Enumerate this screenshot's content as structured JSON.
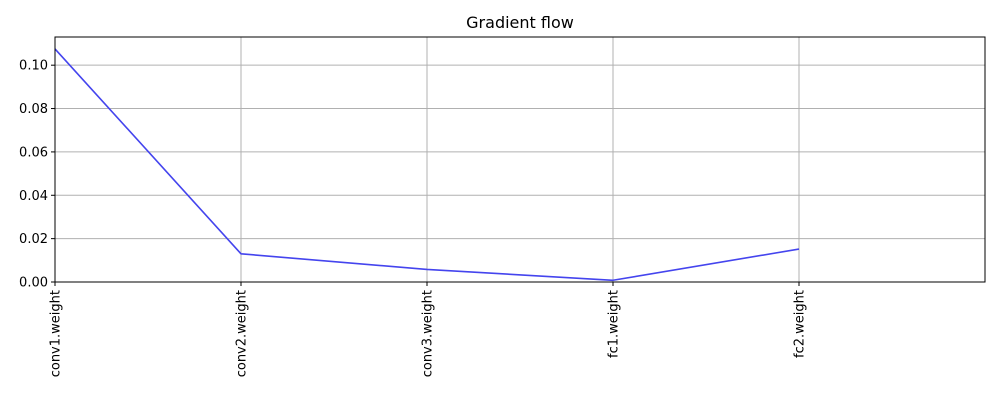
{
  "chart_data": {
    "type": "line",
    "title": "Gradient flow",
    "xlabel": "",
    "ylabel": "",
    "categories": [
      "conv1.weight",
      "conv2.weight",
      "conv3.weight",
      "fc1.weight",
      "fc2.weight"
    ],
    "series": [
      {
        "values": [
          0.1075,
          0.013,
          0.0058,
          0.0008,
          0.0152
        ],
        "color": "#4444ee"
      }
    ],
    "xlim": [
      0,
      5
    ],
    "ylim": [
      0,
      0.113
    ],
    "yticks": [
      "0.00",
      "0.02",
      "0.04",
      "0.06",
      "0.08",
      "0.10"
    ],
    "ytick_values": [
      0,
      0.02,
      0.04,
      0.06,
      0.08,
      0.1
    ],
    "grid": true,
    "legend": "none"
  }
}
